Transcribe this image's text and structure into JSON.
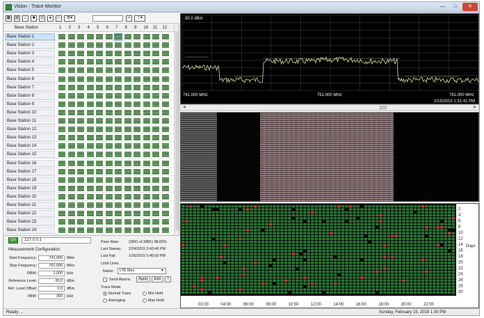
{
  "window": {
    "title": "Vision - Trace Monitor",
    "controls": {
      "minimize": "—",
      "maximize": "□",
      "close": "✕"
    }
  },
  "toolbar": {
    "icons": [
      "grid-view-icon",
      "table-view-icon",
      "home-icon",
      "save-icon",
      "target-icon",
      "globe-icon",
      "print-icon",
      "settings-icon",
      "binoculars-icon",
      "export-icon"
    ]
  },
  "stations": {
    "header": "Base Station",
    "columns": [
      "1",
      "2",
      "3",
      "4",
      "5",
      "6",
      "7",
      "8",
      "9",
      "10",
      "11",
      "12"
    ],
    "selected_column": 7,
    "rows": [
      "Base Station 1",
      "Base Station 2",
      "Base Station 3",
      "Base Station 4",
      "Base Station 5",
      "Base Station 6",
      "Base Station 7",
      "Base Station 8",
      "Base Station 9",
      "Base Station 10",
      "Base Station 11",
      "Base Station 12",
      "Base Station 13",
      "Base Station 14",
      "Base Station 15",
      "Base Station 16",
      "Base Station 17",
      "Base Station 18",
      "Base Station 19",
      "Base Station 20",
      "Base Station 21",
      "Base Station 22",
      "Base Station 23",
      "Base Station 24"
    ]
  },
  "connection": {
    "on_label": "On",
    "address": "127.0.0.1"
  },
  "measurement": {
    "title": "Measurement Configuration",
    "start_label": "Start Frequency:",
    "start_value": "741.000",
    "start_unit": "MHz",
    "stop_label": "Stop Frequency:",
    "stop_value": "761.000",
    "stop_unit": "MHz",
    "rbw_label": "RBW:",
    "rbw_value": "1,000",
    "rbw_unit": "kHz",
    "ref_label": "Reference Level:",
    "ref_value": "-30.0",
    "ref_unit": "dBm",
    "offset_label": "Ref. Level Offset:",
    "offset_value": "0.0",
    "offset_unit": "dBm",
    "vbw_label": "VBW:",
    "vbw_value": "300",
    "vbw_unit": "kHz"
  },
  "stats": {
    "pass_label": "Pass Rate:",
    "pass_value": "(2841 of 2881) 98.60%",
    "sweep_label": "Last Sweep:",
    "sweep_value": "2/24/2015 3:43:40 PM",
    "fail_label": "Last Fail:",
    "fail_value": "1/26/2015 5:45:00 PM"
  },
  "limits": {
    "title": "Limit Lines",
    "name_label": "Name:",
    "name_value": "LTE Max.",
    "send_alarms": "Send Alarms",
    "apply": "Apply",
    "edit": "Edit",
    "help": "?"
  },
  "trace_mode": {
    "title": "Trace Mode",
    "normal": "Normal Trace",
    "min_hold": "Min Hold",
    "averaging": "Averaging",
    "max_hold": "Max Hold"
  },
  "spectrum": {
    "ref_level": "-30.0 dBm",
    "x_start": "741.000 MHz",
    "x_center": "751.000 MHz",
    "x_stop": "761.000 MHz",
    "timestamp": "2/15/2015 1:31:41 PM",
    "trace_color": "#e6e6a0"
  },
  "heatmap": {
    "x_ticks": [
      "02:00",
      "04:00",
      "06:00",
      "08:00",
      "10:00",
      "12:00",
      "14:00",
      "16:00",
      "18:00",
      "20:00",
      "22:00"
    ],
    "y_ticks": [
      "2",
      "4",
      "6",
      "8",
      "10",
      "12",
      "14",
      "16",
      "18",
      "20",
      "22",
      "24",
      "26",
      "28",
      "30"
    ],
    "y_label": "Days",
    "pass_color": "#2f7d3a",
    "fail_color": "#000000",
    "warn_color": "#d63b3b"
  },
  "status": {
    "left": "Ready ...",
    "right": "Sunday, February 15, 2015 1:30 PM"
  }
}
